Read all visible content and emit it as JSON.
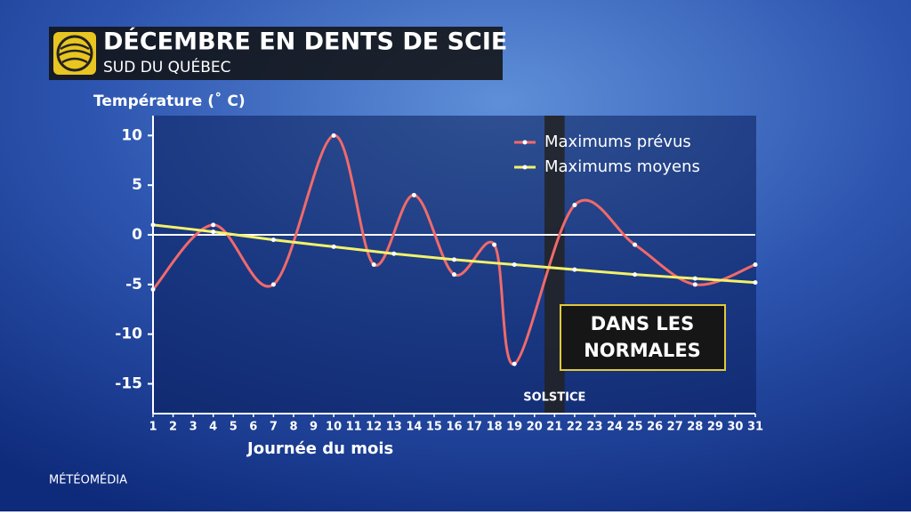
{
  "chart_data": {
    "type": "line",
    "title": "DÉCEMBRE EN DENTS DE SCIE",
    "subtitle": "SUD DU QUÉBEC",
    "y_label": "Température (˚ C)",
    "x_label": "Journée du mois",
    "footer": "MÉTÉOMÉDIA",
    "xlim": [
      1,
      31
    ],
    "xticks": [
      1,
      2,
      3,
      4,
      5,
      6,
      7,
      8,
      9,
      10,
      11,
      12,
      13,
      14,
      15,
      16,
      17,
      18,
      19,
      20,
      21,
      22,
      23,
      24,
      25,
      26,
      27,
      28,
      29,
      30,
      31
    ],
    "ylim": [
      -18,
      12
    ],
    "yticks": [
      -15,
      -10,
      -5,
      0,
      5,
      10
    ],
    "zero_line": true,
    "legend": "upper right",
    "band": {
      "x": 21,
      "label": "SOLSTICE"
    },
    "box_text": [
      "DANS LES",
      "NORMALES"
    ],
    "series": [
      {
        "name": "Maximums prévus",
        "color": "#f06a6a",
        "x": [
          1,
          4,
          7,
          10,
          12,
          14,
          16,
          18,
          19,
          22,
          25,
          28,
          31
        ],
        "values": [
          -5.5,
          1,
          -5,
          10,
          -3,
          4,
          -4,
          -1,
          -13,
          3,
          -1,
          -5,
          -3
        ]
      },
      {
        "name": "Maximums moyens",
        "color": "#f2f26a",
        "x": [
          1,
          4,
          7,
          10,
          13,
          16,
          19,
          22,
          25,
          28,
          31
        ],
        "values": [
          1,
          0.3,
          -0.5,
          -1.2,
          -1.9,
          -2.5,
          -3,
          -3.5,
          -4,
          -4.4,
          -4.8
        ]
      }
    ]
  }
}
